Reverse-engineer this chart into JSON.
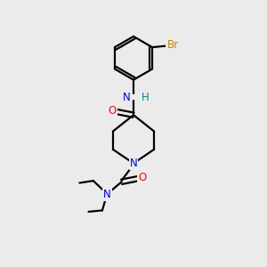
{
  "background_color": "#ebebeb",
  "atom_colors": {
    "N": "#0000dd",
    "O": "#ff0000",
    "Br": "#cc8800",
    "C": "#000000",
    "H": "#008888"
  },
  "figsize": [
    3.0,
    3.0
  ],
  "dpi": 100,
  "bond_lw": 1.6,
  "fontsize": 8.5
}
